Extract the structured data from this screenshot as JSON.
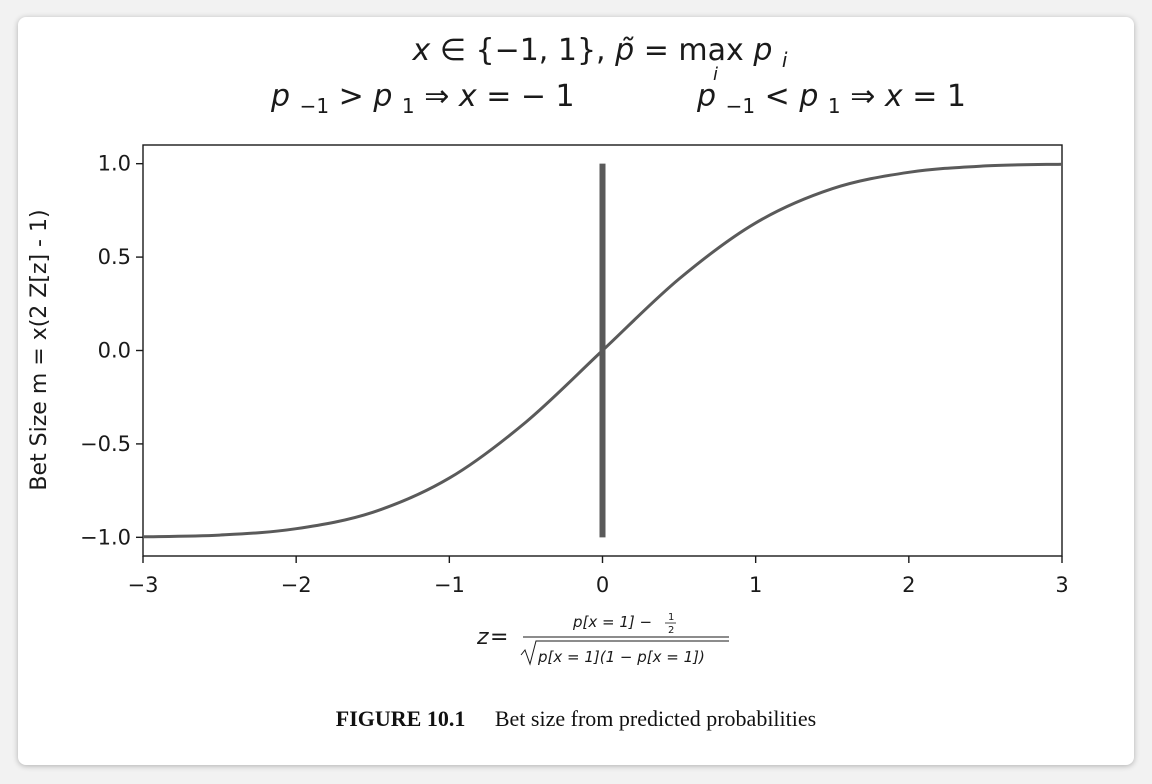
{
  "chart_data": {
    "type": "line",
    "title_line1": {
      "x": "x",
      "in_set": "∈ {−1, 1},",
      "ptilde": "p̃",
      "eq": " = ",
      "max": "max",
      "sub_i": "i",
      "p": "p",
      "p_sub": "i"
    },
    "title_line2_left": {
      "p": "p",
      "sub_m1": "−1",
      "gt": " > ",
      "p2": "p",
      "sub_1": "1",
      "implies": " ⇒ ",
      "x": "x",
      "rest": " =  − 1"
    },
    "title_line2_right": {
      "p": "p",
      "sub_m1": "−1",
      "lt": " < ",
      "p2": "p",
      "sub_1": "1",
      "implies": " ⇒ ",
      "x": "x",
      "rest": " = 1"
    },
    "ylabel": "Bet Size m = x(2 Z[z] - 1)",
    "xlabel": {
      "z": "z",
      "eq": " = ",
      "numerator": "p[x = 1] − ",
      "half_num": "1",
      "half_den": "2",
      "denominator": "p[x = 1](1 − p[x = 1])"
    },
    "xlim": [
      -3,
      3
    ],
    "ylim": [
      -1.1,
      1.1
    ],
    "xticks": [
      -3,
      -2,
      -1,
      0,
      1,
      2,
      3
    ],
    "xtick_labels": [
      "−3",
      "−2",
      "−1",
      "0",
      "1",
      "2",
      "3"
    ],
    "yticks": [
      1.0,
      0.5,
      0.0,
      -0.5,
      -1.0
    ],
    "ytick_labels": [
      "1.0",
      "0.5",
      "0.0",
      "−0.5",
      "−1.0"
    ],
    "grid": false,
    "series": [
      {
        "function": "2*Phi(z)-1",
        "x": [
          -3.0,
          -2.5,
          -2.0,
          -1.5,
          -1.0,
          -0.5,
          0.0,
          0.5,
          1.0,
          1.5,
          2.0,
          2.5,
          3.0
        ],
        "y": [
          -0.997,
          -0.988,
          -0.954,
          -0.866,
          -0.683,
          -0.383,
          0.0,
          0.383,
          0.683,
          0.866,
          0.954,
          0.988,
          0.997
        ],
        "color": "#5a5a5a"
      }
    ],
    "vline": {
      "x": 0,
      "ymin": -1.0,
      "ymax": 1.0,
      "color": "#5a5a5a"
    }
  },
  "caption": {
    "label": "FIGURE 10.1",
    "text": "Bet size from predicted probabilities"
  }
}
